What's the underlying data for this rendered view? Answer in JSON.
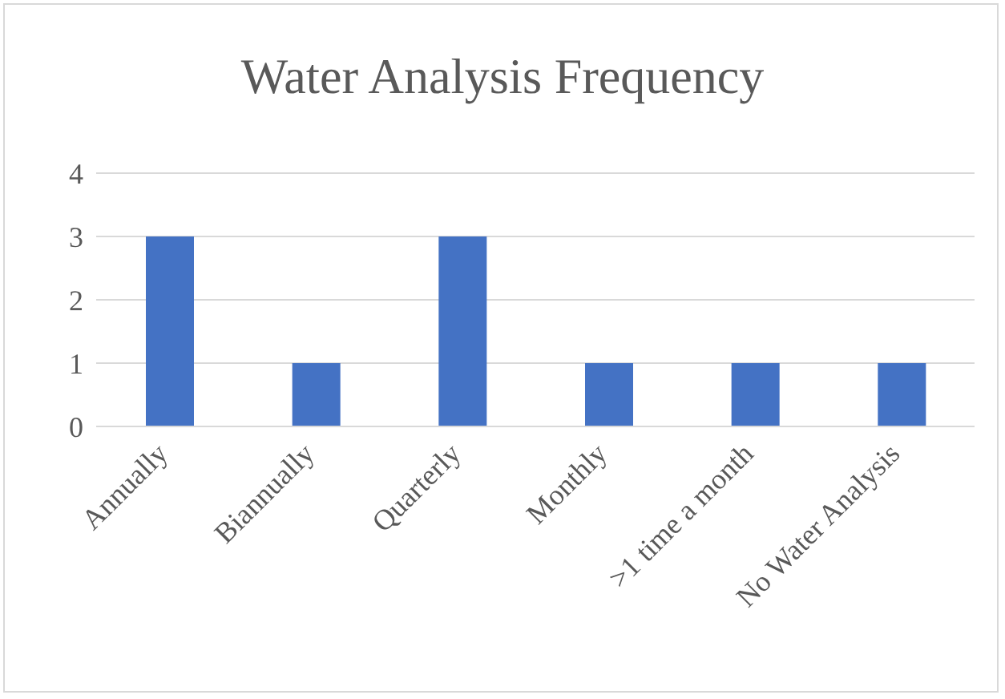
{
  "chart_data": {
    "type": "bar",
    "title": "Water Analysis Frequency",
    "categories": [
      "Annually",
      "Biannually",
      "Quarterly",
      "Monthly",
      ">1 time a month",
      "No Water Analysis"
    ],
    "values": [
      3,
      1,
      3,
      1,
      1,
      1
    ],
    "color": "#4472c4",
    "ylim": [
      0,
      4
    ],
    "yticks": [
      0,
      1,
      2,
      3,
      4
    ],
    "grid": "y"
  }
}
